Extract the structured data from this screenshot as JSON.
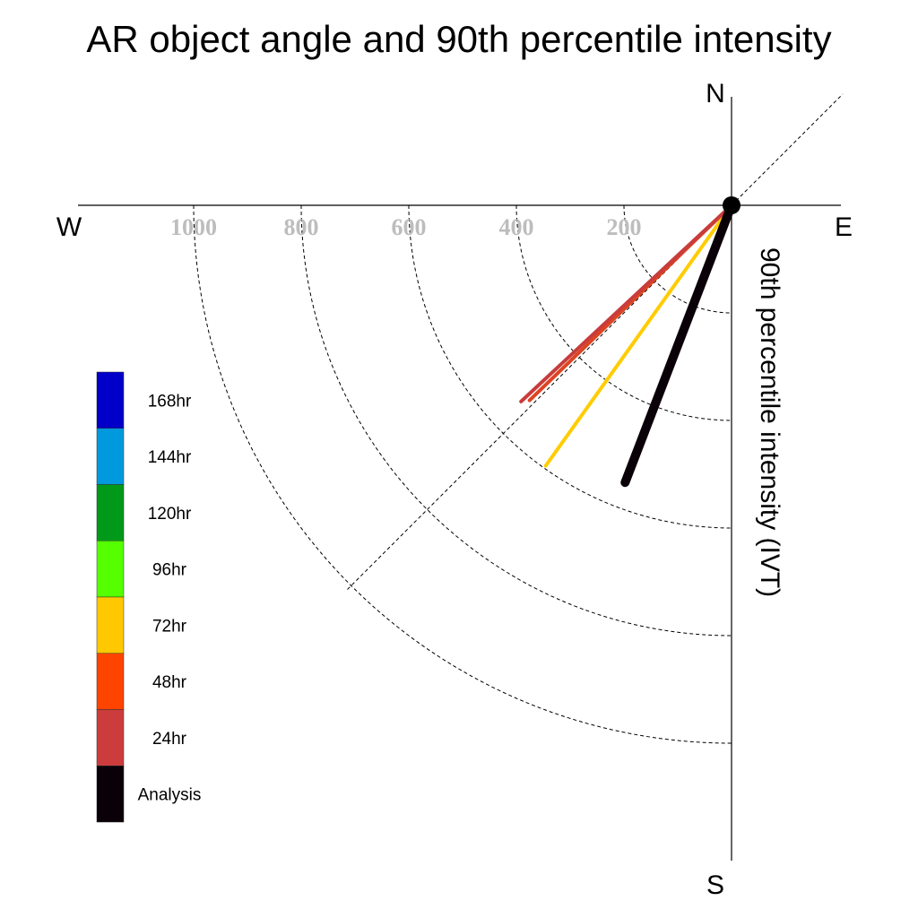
{
  "chart_data": {
    "type": "polar-line",
    "title": "AR object angle and 90th percentile intensity",
    "radial_label": "90th percentile intensity (IVT)",
    "compass": {
      "n": "N",
      "e": "E",
      "s": "S",
      "w": "W"
    },
    "r_ticks": [
      "200",
      "400",
      "600",
      "800",
      "1000"
    ],
    "r_tick_values": [
      200,
      400,
      600,
      800,
      1000
    ],
    "r_max": 1200,
    "grid": true,
    "legend_position": "left",
    "series": [
      {
        "name": "144hr",
        "color": "#0099dd",
        "angle_deg": 200.5,
        "intensity": 530
      },
      {
        "name": "72hr",
        "color": "#ffcc00",
        "angle_deg": 215.5,
        "intensity": 595
      },
      {
        "name": "48hr",
        "color": "#dd4422",
        "angle_deg": 226.0,
        "intensity": 522
      },
      {
        "name": "24hr",
        "color": "#c83c3c",
        "angle_deg": 227.0,
        "intensity": 535
      },
      {
        "name": "Analysis",
        "color": "#0a0008",
        "angle_deg": 201.0,
        "intensity": 552
      }
    ],
    "legend": [
      {
        "label": "168hr",
        "color": "#0000c8"
      },
      {
        "label": "144hr",
        "color": "#0099dd"
      },
      {
        "label": "120hr",
        "color": "#009919"
      },
      {
        "label": "96hr",
        "color": "#55ff00"
      },
      {
        "label": "72hr",
        "color": "#ffc800"
      },
      {
        "label": "48hr",
        "color": "#ff4400"
      },
      {
        "label": "24hr",
        "color": "#cc3c3c"
      },
      {
        "label": "Analysis",
        "color": "#0a0008"
      }
    ]
  }
}
